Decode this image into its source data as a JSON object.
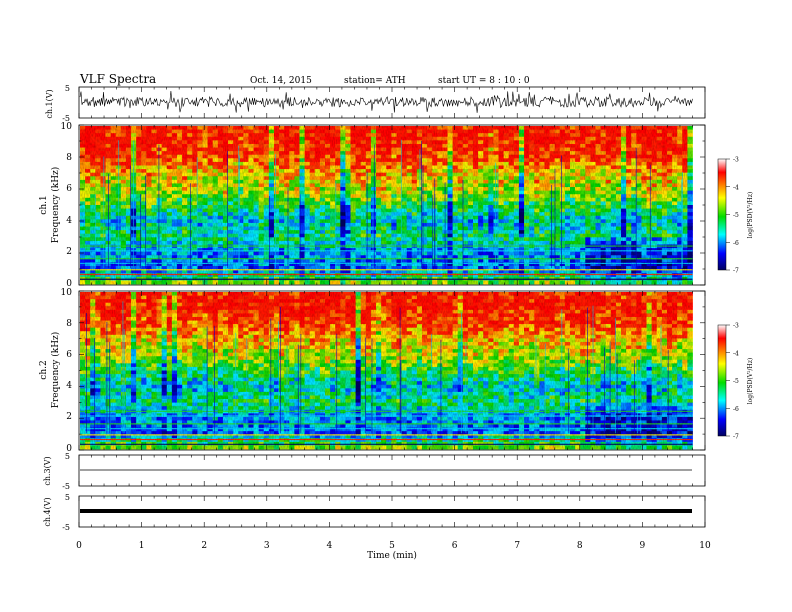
{
  "header": {
    "title": "VLF  Spectra",
    "date": "Oct. 14, 2015",
    "station": "station= ATH",
    "start": "start  UT =   8 : 10 : 0"
  },
  "panels": {
    "ch1_wave": {
      "ylabel": "ch.1(V)",
      "yticks": [
        "5",
        "-5"
      ]
    },
    "ch1_spec": {
      "ylabel1": "ch.1",
      "ylabel2": "Frequency  (kHz)",
      "yticks": [
        "10",
        "8",
        "6",
        "4",
        "2",
        "0"
      ]
    },
    "ch2_spec": {
      "ylabel1": "ch.2",
      "ylabel2": "Frequency  (kHz)",
      "yticks": [
        "10",
        "8",
        "6",
        "4",
        "2",
        "0"
      ]
    },
    "ch3_wave": {
      "ylabel": "ch.3(V)",
      "yticks": [
        "5",
        "-5"
      ]
    },
    "ch4_wave": {
      "ylabel": "ch.4(V)",
      "yticks": [
        "5",
        "-5"
      ]
    }
  },
  "colorbar": {
    "label": "log(PSD(V²/Hz)",
    "ticks": [
      "-3",
      "-4",
      "-5",
      "-6",
      "-7"
    ],
    "colors": [
      "#ff0000",
      "#ffff00",
      "#00dd00",
      "#00ffff",
      "#0000ff",
      "#000060"
    ]
  },
  "chart_data": {
    "type": "heatmap",
    "title": "VLF  Spectra",
    "xlabel": "Time  (min)",
    "xlim": [
      0,
      10
    ],
    "xticks": [
      "0",
      "1",
      "2",
      "3",
      "4",
      "5",
      "6",
      "7",
      "8",
      "9",
      "10"
    ],
    "data_end_min": 9.8,
    "spectrogram_ylim_khz": [
      0,
      10
    ],
    "psd_log_range": [
      -7,
      -3
    ],
    "psd_colors": {
      "high": "#ff2200",
      "mid_high": "#ffee00",
      "mid": "#22dd22",
      "low": "#00ccff",
      "lowest": "#0000cc"
    },
    "approx_log_psd_profile_by_freq_khz": {
      "freq_khz": [
        0,
        1,
        2,
        3,
        4,
        5,
        6,
        7,
        8,
        9,
        10
      ],
      "log_psd": [
        -4.5,
        -6.0,
        -5.8,
        -5.2,
        -5.6,
        -5.0,
        -4.5,
        -4.2,
        -3.6,
        -3.4,
        -3.4
      ]
    },
    "waveform_ylim_v": [
      -5,
      5
    ]
  }
}
